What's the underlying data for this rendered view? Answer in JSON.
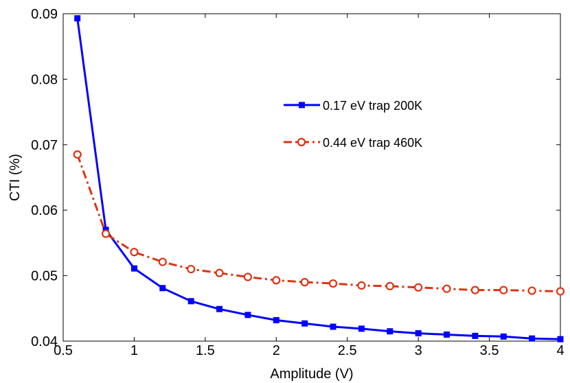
{
  "chart_data": {
    "type": "line",
    "title": "",
    "xlabel": "Amplitude (V)",
    "ylabel": "CTI (%)",
    "xlim": [
      0.5,
      4
    ],
    "ylim": [
      0.04,
      0.09
    ],
    "xticks": [
      0.5,
      1,
      1.5,
      2,
      2.5,
      3,
      3.5,
      4
    ],
    "yticks": [
      0.04,
      0.05,
      0.06,
      0.07,
      0.08,
      0.09
    ],
    "xtick_labels": [
      "0.5",
      "1",
      "1.5",
      "2",
      "2.5",
      "3",
      "3.5",
      "4"
    ],
    "ytick_labels": [
      "0.04",
      "0.05",
      "0.06",
      "0.07",
      "0.08",
      "0.09"
    ],
    "grid": false,
    "legend_position": "upper-right",
    "series": [
      {
        "name": "0.17 eV trap 200K",
        "color": "#0000ff",
        "line_style": "solid",
        "marker": "square",
        "x": [
          0.6,
          0.8,
          1.0,
          1.2,
          1.4,
          1.6,
          1.8,
          2.0,
          2.2,
          2.4,
          2.6,
          2.8,
          3.0,
          3.2,
          3.4,
          3.6,
          3.8,
          4.0
        ],
        "y": [
          0.0893,
          0.057,
          0.0511,
          0.0481,
          0.0461,
          0.0449,
          0.044,
          0.0432,
          0.0427,
          0.0422,
          0.0419,
          0.0415,
          0.0412,
          0.041,
          0.0408,
          0.0407,
          0.0404,
          0.0403
        ]
      },
      {
        "name": "0.44 eV trap 460K",
        "color": "#dd3311",
        "line_style": "dash-dot",
        "marker": "circle-open",
        "x": [
          0.6,
          0.8,
          1.0,
          1.2,
          1.4,
          1.6,
          1.8,
          2.0,
          2.2,
          2.4,
          2.6,
          2.8,
          3.0,
          3.2,
          3.4,
          3.6,
          3.8,
          4.0
        ],
        "y": [
          0.0685,
          0.0564,
          0.0536,
          0.0521,
          0.051,
          0.0504,
          0.0498,
          0.0493,
          0.049,
          0.0488,
          0.0485,
          0.0484,
          0.0482,
          0.048,
          0.0478,
          0.0478,
          0.0477,
          0.0476
        ]
      }
    ]
  }
}
